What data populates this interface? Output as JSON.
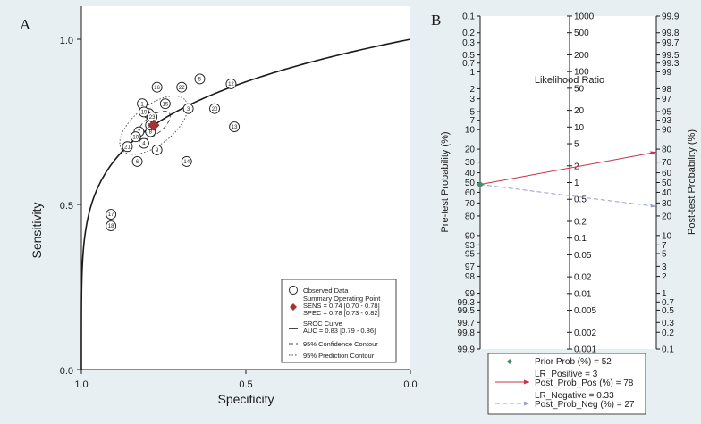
{
  "colors": {
    "background": "#e8eff3",
    "plot_bg": "#ffffff",
    "summary_point": "#a83232",
    "positive_line": "#c8304a",
    "negative_line": "#9a9ad6",
    "prior_point": "#4e8a6a"
  },
  "chart_data": [
    {
      "panel": "A",
      "type": "scatter",
      "xlabel": "Specificity",
      "ylabel": "Sensitivity",
      "x_ticks": [
        "1.0",
        "0.5",
        "0.0"
      ],
      "y_ticks": [
        "0.0",
        "0.5",
        "1.0"
      ],
      "xlim": [
        1.0,
        0.0
      ],
      "ylim": [
        0.0,
        1.0
      ],
      "x_reversed": true,
      "studies": [
        {
          "id": "1",
          "spec": 0.815,
          "sens": 0.805
        },
        {
          "id": "2",
          "spec": 0.795,
          "sens": 0.775
        },
        {
          "id": "3",
          "spec": 0.675,
          "sens": 0.79
        },
        {
          "id": "4",
          "spec": 0.81,
          "sens": 0.685
        },
        {
          "id": "5",
          "spec": 0.64,
          "sens": 0.88
        },
        {
          "id": "6",
          "spec": 0.83,
          "sens": 0.63
        },
        {
          "id": "7",
          "spec": 0.825,
          "sens": 0.72
        },
        {
          "id": "8",
          "spec": 0.79,
          "sens": 0.72
        },
        {
          "id": "9",
          "spec": 0.77,
          "sens": 0.665
        },
        {
          "id": "10",
          "spec": 0.835,
          "sens": 0.705
        },
        {
          "id": "11",
          "spec": 0.79,
          "sens": 0.74
        },
        {
          "id": "12",
          "spec": 0.545,
          "sens": 0.865
        },
        {
          "id": "13",
          "spec": 0.535,
          "sens": 0.735
        },
        {
          "id": "14",
          "spec": 0.68,
          "sens": 0.63
        },
        {
          "id": "15",
          "spec": 0.745,
          "sens": 0.805
        },
        {
          "id": "16",
          "spec": 0.77,
          "sens": 0.855
        },
        {
          "id": "17",
          "spec": 0.91,
          "sens": 0.47
        },
        {
          "id": "18",
          "spec": 0.91,
          "sens": 0.435
        },
        {
          "id": "19",
          "spec": 0.81,
          "sens": 0.78
        },
        {
          "id": "20",
          "spec": 0.595,
          "sens": 0.79
        },
        {
          "id": "21",
          "spec": 0.86,
          "sens": 0.675
        },
        {
          "id": "22",
          "spec": 0.695,
          "sens": 0.855
        },
        {
          "id": "23",
          "spec": 0.785,
          "sens": 0.765
        }
      ],
      "summary_point": {
        "spec": 0.78,
        "sens": 0.74
      },
      "sroc_auc": 0.83,
      "legend": {
        "placement": "bottom-right",
        "items": [
          {
            "key": "observed",
            "lines": [
              "Observed Data"
            ]
          },
          {
            "key": "summary",
            "lines": [
              "Summary Operating Point",
              "SENS = 0.74 [0.70 - 0.78]",
              "SPEC = 0.78 [0.73 - 0.82]"
            ]
          },
          {
            "key": "sroc",
            "lines": [
              "SROC Curve",
              "AUC = 0.83 [0.79 - 0.86]"
            ]
          },
          {
            "key": "confidence",
            "lines": [
              "95% Confidence Contour"
            ]
          },
          {
            "key": "prediction",
            "lines": [
              "95% Prediction Contour"
            ]
          }
        ]
      }
    },
    {
      "panel": "B",
      "type": "line",
      "left_axis_label": "Pre-test Probability (%)",
      "right_axis_label": "Post-test Probability (%)",
      "center_title": "Likelihood Ratio",
      "left_ticks": [
        0.1,
        0.2,
        0.3,
        0.5,
        0.7,
        1,
        2,
        3,
        5,
        7,
        10,
        20,
        30,
        40,
        50,
        60,
        70,
        80,
        90,
        93,
        95,
        97,
        98,
        99,
        99.3,
        99.5,
        99.7,
        99.8,
        99.9
      ],
      "lr_ticks": [
        1000,
        500,
        200,
        100,
        50,
        20,
        10,
        5,
        2,
        1,
        0.5,
        0.2,
        0.1,
        0.05,
        0.02,
        0.01,
        0.005,
        0.002,
        0.001
      ],
      "lr_tick_labels": [
        "1000",
        "500",
        "200",
        "100",
        "50",
        "20",
        "10",
        "5",
        "2",
        "1",
        "0.5",
        "0.2",
        "0.1",
        "0.05",
        "0.02",
        "0.01",
        "0.005",
        "0.002",
        "0.001"
      ],
      "prior_prob": 52,
      "lr_positive": 3,
      "post_prob_pos": 78,
      "lr_negative": 0.33,
      "post_prob_neg": 27,
      "legend": {
        "prior": "Prior Prob (%) =   52",
        "pos_line1": "LR_Positive =     3",
        "pos_line2": "Post_Prob_Pos (%) =   78",
        "neg_line1": "LR_Negative = 0.33",
        "neg_line2": "Post_Prob_Neg (%) =   27"
      }
    }
  ]
}
